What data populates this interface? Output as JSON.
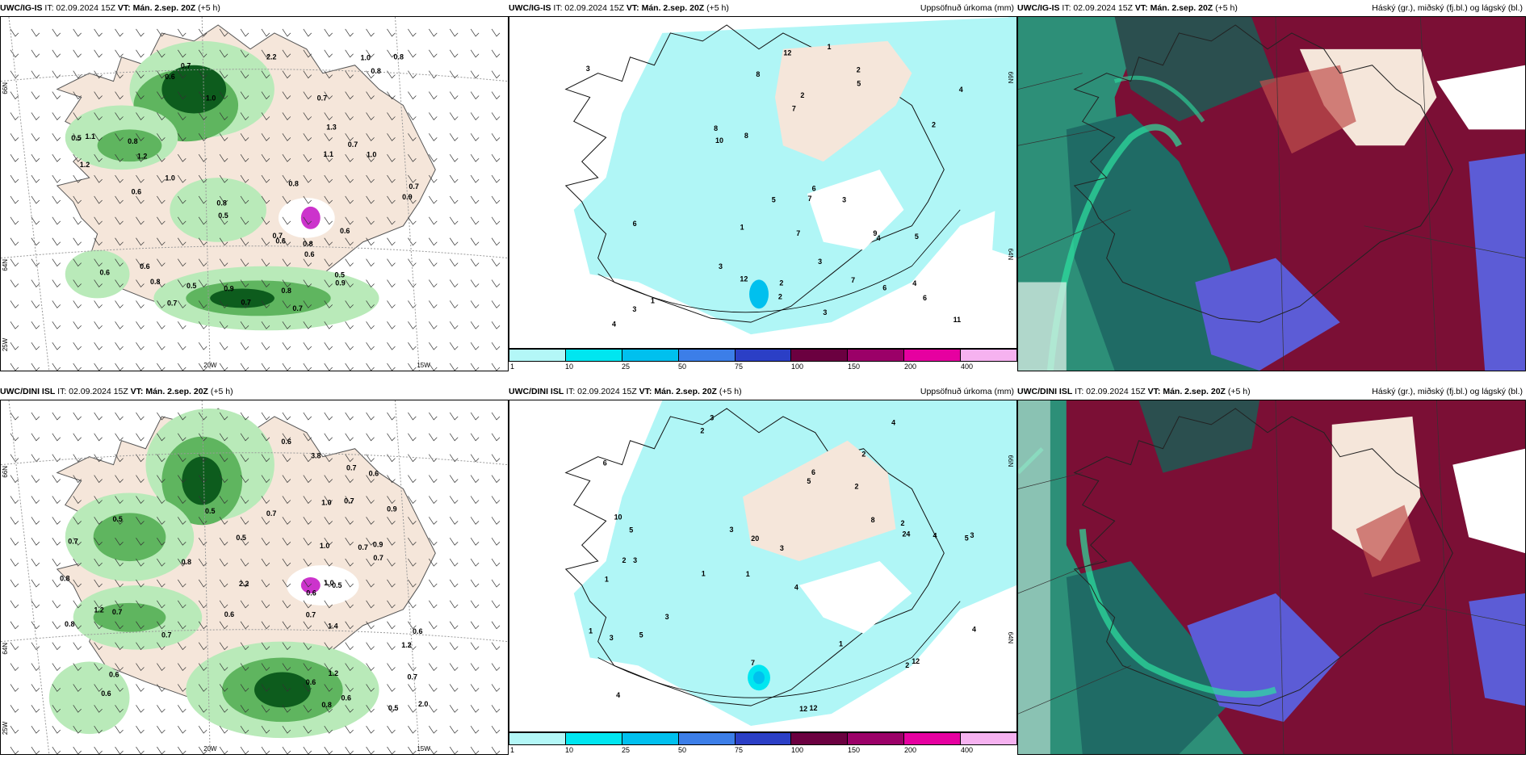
{
  "rows": [
    {
      "wind": {
        "model": "UWC/IG-IS",
        "it": "IT: 02.09.2024 15Z",
        "vt": "VT: Mán. 2.sep. 20Z",
        "lead": "(+5 h)",
        "labels": [
          "0.7",
          "0.6",
          "0.6",
          "0.8",
          "0.7",
          "0.8",
          "0.9",
          "1.0",
          "0.5",
          "0.8",
          "0.6",
          "0.5",
          "0.8",
          "0.7",
          "1.1",
          "1.0",
          "1.2",
          "0.8",
          "0.6",
          "1.0",
          "0.5",
          "0.6",
          "0.7",
          "0.9",
          "0.8",
          "1.3",
          "0.6",
          "1.2",
          "0.7",
          "1.0",
          "0.6",
          "0.8",
          "0.7",
          "0.5",
          "0.7",
          "0.9",
          "2.2",
          "1.1",
          "0.7",
          "0.8"
        ]
      },
      "precip": {
        "model": "UWC/IG-IS",
        "it": "IT: 02.09.2024 15Z",
        "vt": "VT: Mán. 2.sep. 20Z",
        "lead": "(+5 h)",
        "title": "Uppsöfnuð úrkoma (mm)",
        "labels": [
          "3",
          "5",
          "6",
          "7",
          "8",
          "1",
          "4",
          "2",
          "6",
          "3",
          "11",
          "10",
          "12",
          "12",
          "7",
          "8",
          "9",
          "6",
          "5",
          "4",
          "3",
          "1",
          "2",
          "3",
          "4",
          "5",
          "8",
          "7",
          "2",
          "3",
          "6",
          "1",
          "2",
          "4",
          "7",
          "3",
          "2"
        ]
      },
      "cloud": {
        "model": "UWC/IG-IS",
        "it": "IT: 02.09.2024 15Z",
        "vt": "VT: Mán. 2.sep. 20Z",
        "lead": "(+5 h)",
        "title": "Háský (gr.), miðský (fj.bl.) og lágský (bl.)"
      }
    },
    {
      "wind": {
        "model": "UWC/DINI ISL",
        "it": "IT: 02.09.2024 15Z",
        "vt": "VT: Mán. 2.sep. 20Z",
        "lead": "(+5 h)",
        "labels": [
          "0.7",
          "0.6",
          "0.7",
          "1.2",
          "0.6",
          "0.7",
          "0.9",
          "0.5",
          "0.7",
          "0.6",
          "1.0",
          "0.6",
          "0.8",
          "1.4",
          "0.7",
          "0.5",
          "0.6",
          "1.2",
          "0.7",
          "0.5",
          "0.6",
          "0.8",
          "1.0",
          "3.8",
          "0.7",
          "0.6",
          "0.5",
          "1.0",
          "2.0",
          "0.7",
          "0.9",
          "0.6",
          "0.7",
          "1.2",
          "0.8",
          "0.6",
          "0.7",
          "2.2",
          "0.5",
          "0.8"
        ]
      },
      "precip": {
        "model": "UWC/DINI ISL",
        "it": "IT: 02.09.2024 15Z",
        "vt": "VT: Mán. 2.sep. 20Z",
        "lead": "(+5 h)",
        "title": "Uppsöfnuð úrkoma (mm)",
        "labels": [
          "3",
          "2",
          "5",
          "1",
          "4",
          "3",
          "6",
          "2",
          "1",
          "5",
          "3",
          "4",
          "2",
          "1",
          "12",
          "12",
          "7",
          "4",
          "8",
          "3",
          "5",
          "2",
          "3",
          "4",
          "1",
          "10",
          "20",
          "24",
          "12",
          "3",
          "2",
          "6",
          "5",
          "3",
          "1",
          "4",
          "2"
        ]
      },
      "cloud": {
        "model": "UWC/DINI ISL",
        "it": "IT: 02.09.2024 15Z",
        "vt": "VT: Mán. 2.sep. 20Z",
        "lead": "(+5 h)",
        "title": "Háský (gr.), miðský (fj.bl.) og lágský (bl.)"
      }
    }
  ],
  "axes": {
    "lat_66": "66N",
    "lat_64": "64N",
    "lon_25": "25W",
    "lon_20": "20W",
    "lon_15": "15W",
    "lat_66_r": "66N",
    "lat_64_r": "64N"
  },
  "legend": {
    "ticks": [
      "1",
      "10",
      "25",
      "50",
      "75",
      "100",
      "150",
      "200",
      "400"
    ],
    "colors": [
      "#b3f7f7",
      "#00e6f0",
      "#00c0ee",
      "#3c7ee8",
      "#2b3fc6",
      "#6b0040",
      "#9b0068",
      "#e600a0",
      "#f6b2f0"
    ]
  },
  "colors": {
    "land": "#f5e6da",
    "green_light": "#b9eab9",
    "green_mid": "#5fb55f",
    "green_dark": "#0d5c1d",
    "cyan": "#b0f6f6",
    "maroon": "#7b0f35",
    "teal": "#1f6b65",
    "purple": "#5c5cd6",
    "magenta": "#cc33cc"
  }
}
